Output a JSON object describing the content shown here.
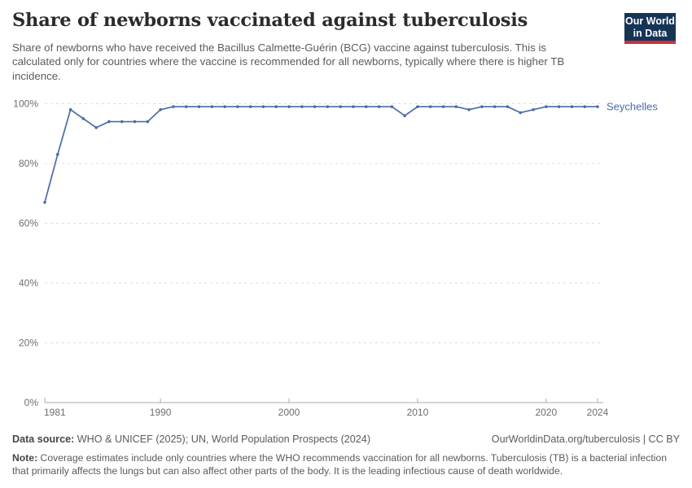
{
  "header": {
    "title": "Share of newborns vaccinated against tuberculosis",
    "subtitle": "Share of newborns who have received the Bacillus Calmette-Guérin (BCG) vaccine against tuberculosis. This is calculated only for countries where the vaccine is recommended for all newborns, typically where there is higher TB incidence.",
    "logo": {
      "line1": "Our World",
      "line2": "in Data",
      "bg_color": "#153456",
      "accent_color": "#c9303c"
    }
  },
  "chart_data": {
    "type": "line",
    "title": "Share of newborns vaccinated against tuberculosis",
    "xlabel": "",
    "ylabel": "",
    "x": [
      1981,
      1982,
      1983,
      1984,
      1985,
      1986,
      1987,
      1988,
      1989,
      1990,
      1991,
      1992,
      1993,
      1994,
      1995,
      1996,
      1997,
      1998,
      1999,
      2000,
      2001,
      2002,
      2003,
      2004,
      2005,
      2006,
      2007,
      2008,
      2009,
      2010,
      2011,
      2012,
      2013,
      2014,
      2015,
      2016,
      2017,
      2018,
      2019,
      2020,
      2021,
      2022,
      2023,
      2024
    ],
    "series": [
      {
        "name": "Seychelles",
        "color": "#4c6ba8",
        "values": [
          67,
          83,
          98,
          95,
          92,
          94,
          94,
          94,
          94,
          98,
          99,
          99,
          99,
          99,
          99,
          99,
          99,
          99,
          99,
          99,
          99,
          99,
          99,
          99,
          99,
          99,
          99,
          99,
          96,
          99,
          99,
          99,
          99,
          98,
          99,
          99,
          99,
          97,
          98,
          99,
          99,
          99,
          99,
          99
        ]
      }
    ],
    "ylim": [
      0,
      100
    ],
    "yticks": [
      0,
      20,
      40,
      60,
      80,
      100
    ],
    "ytick_suffix": "%",
    "xticks": [
      1981,
      1990,
      2000,
      2010,
      2020,
      2024
    ],
    "grid": "horizontal-dashed",
    "legend": "line-end-label",
    "colors": {
      "gridline": "#dcdcdc",
      "axis": "#a8a8a8",
      "tick_label": "#6e6e6e"
    }
  },
  "footer": {
    "datasource_label": "Data source:",
    "datasource": " WHO & UNICEF (2025); UN, World Population Prospects (2024)",
    "link": "OurWorldinData.org/tuberculosis | CC BY",
    "note_label": "Note:",
    "note": " Coverage estimates include only countries where the WHO recommends vaccination for all newborns. Tuberculosis (TB) is a bacterial infection that primarily affects the lungs but can also affect other parts of the body. It is the leading infectious cause of death worldwide."
  }
}
